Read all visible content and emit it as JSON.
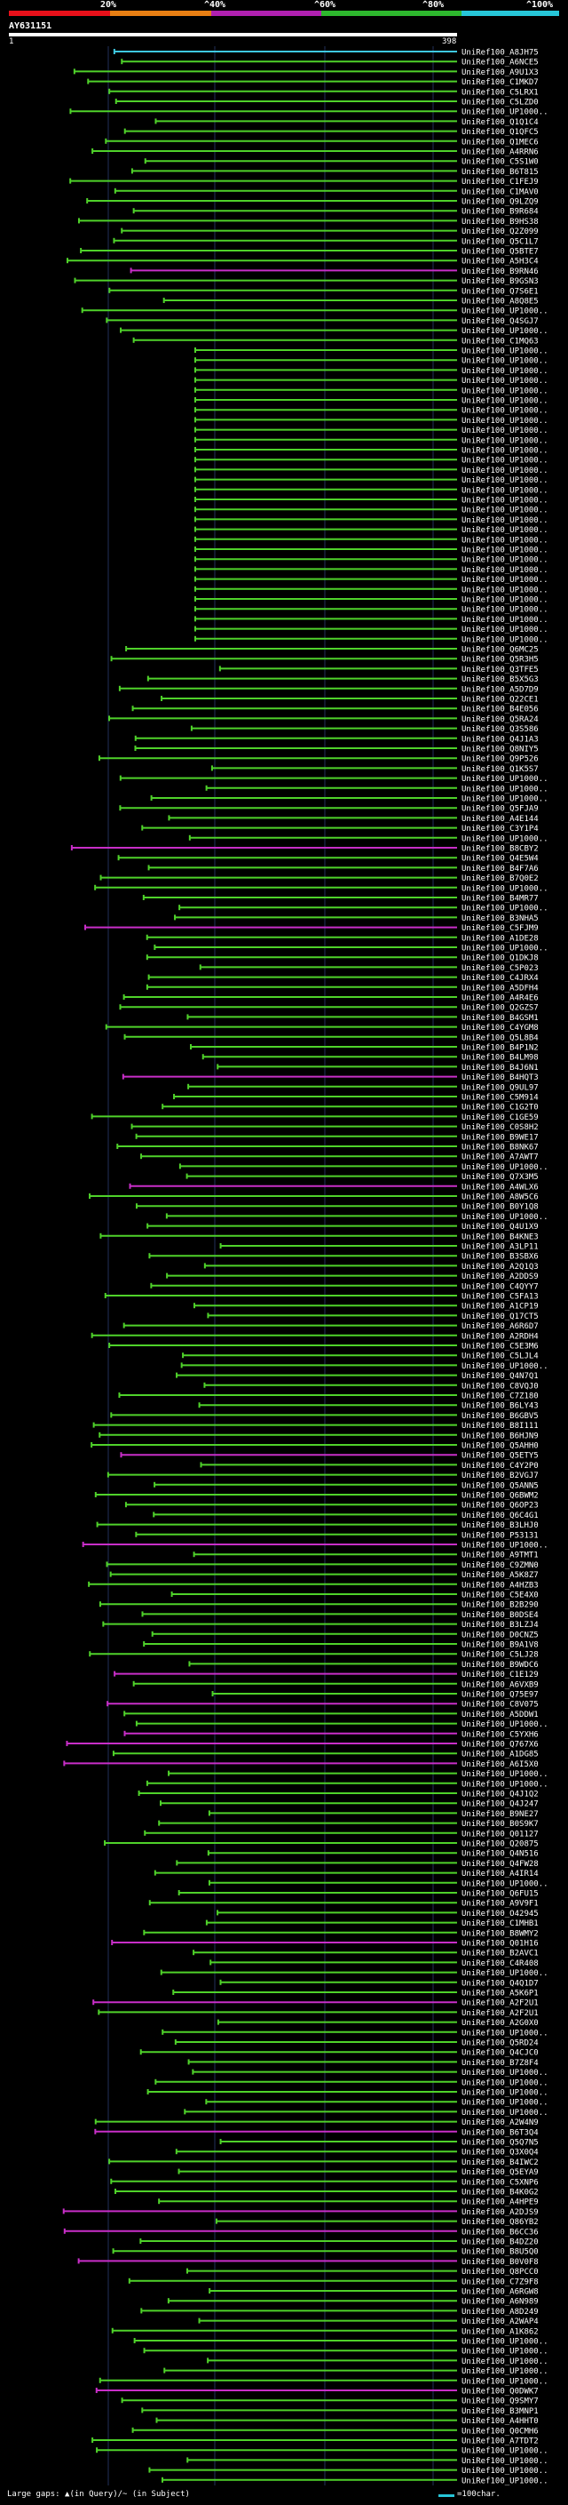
{
  "colors": {
    "background": "#000000",
    "scale_red": "#e8101a",
    "scale_orange": "#e87f13",
    "scale_purple": "#b020b0",
    "scale_green": "#2eb82e",
    "scale_cyan": "#27c6d8",
    "hit_green": "#4fd22a",
    "hit_purple": "#c82ec8",
    "hit_cyan": "#3ec8e0",
    "grid": "#22305a",
    "label": "#ffffff"
  },
  "scale": {
    "ticks": [
      "20%",
      "^40%",
      "^60%",
      "^80%",
      "^100%"
    ]
  },
  "query": {
    "id": "AY631151",
    "start": "1",
    "end": "398"
  },
  "hits": {
    "labels": [
      "UniRef100_A8JH75",
      "UniRef100_A6NCE5",
      "UniRef100_A9U1X3",
      "UniRef100_C1MKD7",
      "UniRef100_C5LRX1",
      "UniRef100_C5LZD0",
      "UniRef100_UP1000..",
      "UniRef100_Q1Q1C4",
      "UniRef100_Q1QFC5",
      "UniRef100_Q1MEC6",
      "UniRef100_A4RRN6",
      "UniRef100_C5S1W0",
      "UniRef100_B6T815",
      "UniRef100_C1FEJ9",
      "UniRef100_C1MAV0",
      "UniRef100_Q9LZQ9",
      "UniRef100_B9R684",
      "UniRef100_B9HS38",
      "UniRef100_Q2Z099",
      "UniRef100_Q5C1L7",
      "UniRef100_Q5BTE7",
      "UniRef100_A5H3C4",
      "UniRef100_B9RN46",
      "UniRef100_B9GSN3",
      "UniRef100_Q7S6E1",
      "UniRef100_A8Q8E5",
      "UniRef100_UP1000..",
      "UniRef100_Q4SGJ7",
      "UniRef100_UP1000..",
      "UniRef100_C1MQ63",
      "UniRef100_UP1000..",
      "UniRef100_UP1000..",
      "UniRef100_UP1000..",
      "UniRef100_UP1000..",
      "UniRef100_UP1000..",
      "UniRef100_UP1000..",
      "UniRef100_UP1000..",
      "UniRef100_UP1000..",
      "UniRef100_UP1000..",
      "UniRef100_UP1000..",
      "UniRef100_UP1000..",
      "UniRef100_UP1000..",
      "UniRef100_UP1000..",
      "UniRef100_UP1000..",
      "UniRef100_UP1000..",
      "UniRef100_UP1000..",
      "UniRef100_UP1000..",
      "UniRef100_UP1000..",
      "UniRef100_UP1000..",
      "UniRef100_UP1000..",
      "UniRef100_UP1000..",
      "UniRef100_UP1000..",
      "UniRef100_UP1000..",
      "UniRef100_UP1000..",
      "UniRef100_UP1000..",
      "UniRef100_UP1000..",
      "UniRef100_UP1000..",
      "UniRef100_UP1000..",
      "UniRef100_UP1000..",
      "UniRef100_UP1000..",
      "UniRef100_Q6MC25",
      "UniRef100_Q5R3H5",
      "UniRef100_Q3TFE5",
      "UniRef100_B5X5G3",
      "UniRef100_A5D7D9",
      "UniRef100_Q22CE1",
      "UniRef100_B4E056",
      "UniRef100_Q5RA24",
      "UniRef100_Q3S586",
      "UniRef100_Q4J1A3",
      "UniRef100_Q8NIY5",
      "UniRef100_Q9P526",
      "UniRef100_Q1K5S7",
      "UniRef100_UP1000..",
      "UniRef100_UP1000..",
      "UniRef100_UP1000..",
      "UniRef100_Q5FJA9",
      "UniRef100_A4E144",
      "UniRef100_C3Y1P4",
      "UniRef100_UP1000..",
      "UniRef100_B8CBY2",
      "UniRef100_Q4E5W4",
      "UniRef100_B4F7A6",
      "UniRef100_B7Q0E2",
      "UniRef100_UP1000..",
      "UniRef100_B4MR77",
      "UniRef100_UP1000..",
      "UniRef100_B3NHA5",
      "UniRef100_C5FJM9",
      "UniRef100_A1DE28",
      "UniRef100_UP1000..",
      "UniRef100_Q1DKJ8",
      "UniRef100_C5P023",
      "UniRef100_C4JRX4",
      "UniRef100_A5DFH4",
      "UniRef100_A4R4E6",
      "UniRef100_Q2GZS7",
      "UniRef100_B4GSM1",
      "UniRef100_C4YGM8",
      "UniRef100_Q5L8B4",
      "UniRef100_B4P1N2",
      "UniRef100_B4LM98",
      "UniRef100_B4J6N1",
      "UniRef100_B4HQT3",
      "UniRef100_Q9UL97",
      "UniRef100_C5M914",
      "UniRef100_C1G2T0",
      "UniRef100_C1GE59",
      "UniRef100_C0S8H2",
      "UniRef100_B9WE17",
      "UniRef100_B8NK67",
      "UniRef100_A7AWT7",
      "UniRef100_UP1000..",
      "UniRef100_Q7X3M5",
      "UniRef100_A4WLX6",
      "UniRef100_A8W5C6",
      "UniRef100_B0Y1Q8",
      "UniRef100_UP1000..",
      "UniRef100_Q4U1X9",
      "UniRef100_B4KNE3",
      "UniRef100_A3LP11",
      "UniRef100_B3SBX6",
      "UniRef100_A2Q1Q3",
      "UniRef100_A2DDS9",
      "UniRef100_C4QYY7",
      "UniRef100_C5FA13",
      "UniRef100_A1CP19",
      "UniRef100_Q17CT5",
      "UniRef100_A6R6D7",
      "UniRef100_A2RDH4",
      "UniRef100_C5E3M6",
      "UniRef100_C5LJL4",
      "UniRef100_UP1000..",
      "UniRef100_Q4N7Q1",
      "UniRef100_C8VQJ0",
      "UniRef100_C7Z180",
      "UniRef100_B6LY43",
      "UniRef100_B6GBV5",
      "UniRef100_B8I111",
      "UniRef100_B6HJN9",
      "UniRef100_Q5AHH0",
      "UniRef100_Q5ETY5",
      "UniRef100_C4Y2P0",
      "UniRef100_B2VGJ7",
      "UniRef100_Q5ANN5",
      "UniRef100_Q6BWM2",
      "UniRef100_Q6OP23",
      "UniRef100_Q6C4G1",
      "UniRef100_B3LHJ0",
      "UniRef100_P53131",
      "UniRef100_UP1000..",
      "UniRef100_A9TMT1",
      "UniRef100_C9ZMN0",
      "UniRef100_A5K8Z7",
      "UniRef100_A4HZB3",
      "UniRef100_C5E4X0",
      "UniRef100_B2B290",
      "UniRef100_B0DSE4",
      "UniRef100_B3LZJ4",
      "UniRef100_D0CNZ5",
      "UniRef100_B9A1V8",
      "UniRef100_C5LJ28",
      "UniRef100_B9WDC6",
      "UniRef100_C1E129",
      "UniRef100_A6VXB9",
      "UniRef100_Q75E97",
      "UniRef100_C8V075",
      "UniRef100_A5DDW1",
      "UniRef100_UP1000..",
      "UniRef100_C5YXH6",
      "UniRef100_Q767X6",
      "UniRef100_A1DG85",
      "UniRef100_A6I5X0",
      "UniRef100_UP1000..",
      "UniRef100_UP1000..",
      "UniRef100_Q4J1Q2",
      "UniRef100_Q4J247",
      "UniRef100_B9NE27",
      "UniRef100_B0S9K7",
      "UniRef100_Q01127",
      "UniRef100_Q20875",
      "UniRef100_Q4N516",
      "UniRef100_Q4FW28",
      "UniRef100_A4IR14",
      "UniRef100_UP1000..",
      "UniRef100_Q6FU15",
      "UniRef100_A9V9F1",
      "UniRef100_O42945",
      "UniRef100_C1MHB1",
      "UniRef100_B8WMY2",
      "UniRef100_Q01H16",
      "UniRef100_B2AVC1",
      "UniRef100_C4R408",
      "UniRef100_UP1000..",
      "UniRef100_Q4Q1D7",
      "UniRef100_A5K6P1",
      "UniRef100_A2F2U1",
      "UniRef100_A2F2U1",
      "UniRef100_A2G0X0",
      "UniRef100_UP1000..",
      "UniRef100_Q5RD24",
      "UniRef100_Q4CJC0",
      "UniRef100_B7Z8F4",
      "UniRef100_UP1000..",
      "UniRef100_UP1000..",
      "UniRef100_UP1000..",
      "UniRef100_UP1000..",
      "UniRef100_UP1000..",
      "UniRef100_A2W4N9",
      "UniRef100_B6T3Q4",
      "UniRef100_Q5Q7N5",
      "UniRef100_Q3X0Q4",
      "UniRef100_B4IWC2",
      "UniRef100_Q5EYA9",
      "UniRef100_C5XNP6",
      "UniRef100_B4K0G2",
      "UniRef100_A4HPE9",
      "UniRef100_A2DJS9",
      "UniRef100_Q86YB2",
      "UniRef100_B6CC36",
      "UniRef100_B4DZ20",
      "UniRef100_B8U5Q0",
      "UniRef100_B0V0F8",
      "UniRef100_Q8PCC0",
      "UniRef100_C7Z9F8",
      "UniRef100_A6RGW8",
      "UniRef100_A6N989",
      "UniRef100_A8D249",
      "UniRef100_A2WAP4",
      "UniRef100_A1K862",
      "UniRef100_UP1000..",
      "UniRef100_UP1000..",
      "UniRef100_UP1000..",
      "UniRef100_UP1000..",
      "UniRef100_UP1000..",
      "UniRef100_Q0DWK7",
      "UniRef100_Q9SMY7",
      "UniRef100_B3MNP1",
      "UniRef100_A4HHT0",
      "UniRef100_Q0CMH6",
      "UniRef100_A7TDT2",
      "UniRef100_UP1000..",
      "UniRef100_UP1000..",
      "UniRef100_UP1000..",
      "UniRef100_UP1000.."
    ]
  },
  "legend": {
    "gaps_text": "Large gaps: ▲(in Query)/~ (in Subject)",
    "scale_text": "=100char."
  }
}
